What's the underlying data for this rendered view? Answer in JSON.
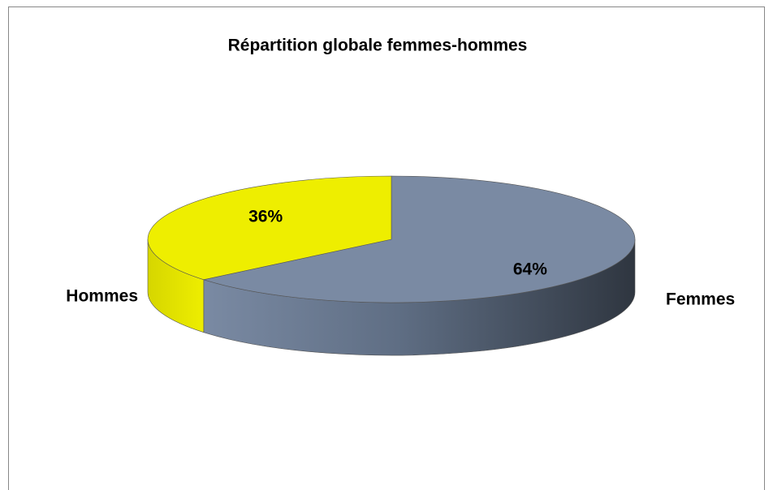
{
  "chart_data": {
    "type": "pie",
    "title": "Répartition globale femmes-hommes",
    "categories": [
      "Femmes",
      "Hommes"
    ],
    "values": [
      64,
      36
    ],
    "value_labels": [
      "64%",
      "36%"
    ],
    "colors": [
      "#7a8aa3",
      "#eeee00"
    ]
  }
}
